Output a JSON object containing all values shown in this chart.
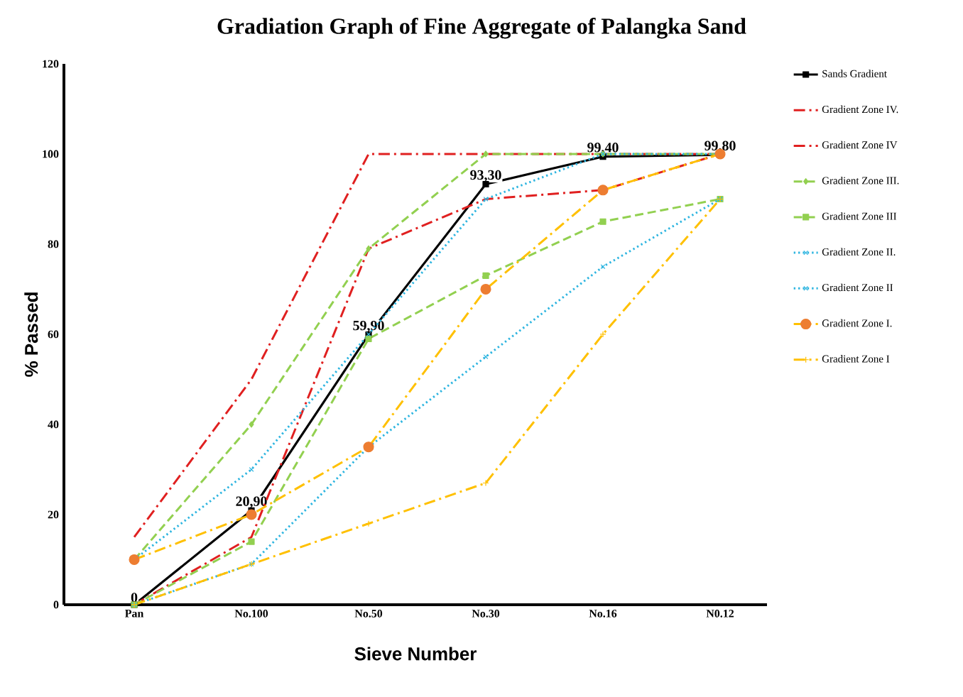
{
  "chart_data": {
    "type": "line",
    "title": "Gradiation Graph of Fine Aggregate of Palangka Sand",
    "xlabel": "Sieve Number",
    "ylabel": "% Passed",
    "categories": [
      "Pan",
      "No.100",
      "No.50",
      "No.30",
      "No.16",
      "N0.12"
    ],
    "ylim": [
      0,
      120
    ],
    "yticks": [
      0,
      20,
      40,
      60,
      80,
      100,
      120
    ],
    "grid": false,
    "legend": "right",
    "series": [
      {
        "name": "Sands Gradient",
        "color": "#000000",
        "values": [
          0,
          20.9,
          59.9,
          93.3,
          99.4,
          99.8
        ],
        "marker": "square",
        "line_style": "solid",
        "value_labels": [
          "0",
          "20,90",
          "59,90",
          "93,30",
          "99,40",
          "99,80"
        ]
      },
      {
        "name": "Gradient Zone IV.",
        "color": "#e02020",
        "values": [
          15,
          50,
          100,
          100,
          100,
          100
        ],
        "marker": "none",
        "line_style": "dashdot"
      },
      {
        "name": "Gradient Zone IV",
        "color": "#e02020",
        "values": [
          0,
          15,
          79,
          90,
          92,
          100
        ],
        "marker": "none",
        "line_style": "dashdot"
      },
      {
        "name": "Gradient Zone III.",
        "color": "#92d050",
        "values": [
          10,
          40,
          79,
          100,
          100,
          100
        ],
        "marker": "diamond",
        "line_style": "dashed"
      },
      {
        "name": "Gradient Zone III",
        "color": "#92d050",
        "values": [
          0,
          14,
          59,
          73,
          85,
          90
        ],
        "marker": "square",
        "line_style": "dashed"
      },
      {
        "name": "Gradient Zone II.",
        "color": "#2eb5e0",
        "values": [
          10,
          30,
          60,
          90,
          100,
          100
        ],
        "marker": "cross",
        "line_style": "dotted"
      },
      {
        "name": "Gradient Zone II",
        "color": "#2eb5e0",
        "values": [
          0,
          9,
          35,
          55,
          75,
          90
        ],
        "marker": "cross",
        "line_style": "dotted"
      },
      {
        "name": "Gradient Zone I.",
        "color": "#ffc000",
        "values": [
          10,
          20,
          35,
          70,
          92,
          100
        ],
        "marker": "circle",
        "line_style": "dashdot"
      },
      {
        "name": "Gradient Zone I",
        "color": "#ffc000",
        "values": [
          0,
          9,
          18,
          27,
          60,
          90
        ],
        "marker": "plus",
        "line_style": "dashdot"
      }
    ]
  }
}
